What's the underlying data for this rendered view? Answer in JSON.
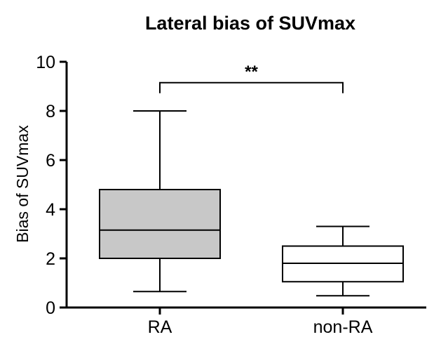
{
  "chart_data": {
    "type": "box",
    "title": "Lateral bias of SUVmax",
    "xlabel": "",
    "ylabel": "Bias of SUVmax",
    "ylim": [
      0,
      10
    ],
    "yticks": [
      "0",
      "2",
      "4",
      "6",
      "8",
      "10"
    ],
    "categories": [
      "RA",
      "non-RA"
    ],
    "boxes": [
      {
        "category": "RA",
        "min": 0.65,
        "q1": 2.0,
        "median": 3.15,
        "q3": 4.8,
        "max": 8.0,
        "fill": "#c8c8c8"
      },
      {
        "category": "non-RA",
        "min": 0.48,
        "q1": 1.05,
        "median": 1.8,
        "q3": 2.5,
        "max": 3.3,
        "fill": "#ffffff"
      }
    ],
    "significance": {
      "between": [
        "RA",
        "non-RA"
      ],
      "label": "**",
      "y": 9.15
    },
    "grid": false,
    "legend": "none"
  }
}
